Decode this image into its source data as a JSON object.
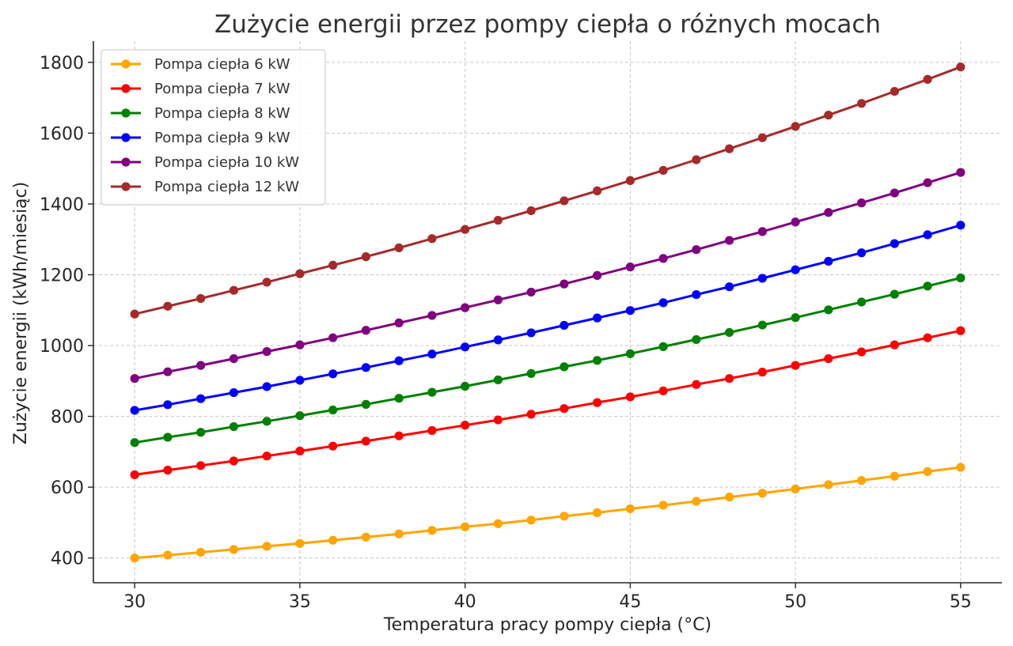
{
  "chart_data": {
    "type": "line",
    "title": "Zużycie energii przez pompy ciepła o różnych mocach",
    "xlabel": "Temperatura pracy pompy ciepła (°C)",
    "ylabel": "Zużycie energii (kWh/miesiąc)",
    "xlim": [
      28.75,
      56.25
    ],
    "ylim": [
      330,
      1860
    ],
    "xticks": [
      30,
      35,
      40,
      45,
      50,
      55
    ],
    "yticks": [
      400,
      600,
      800,
      1000,
      1200,
      1400,
      1600,
      1800
    ],
    "grid": true,
    "legend_position": "top-left",
    "x": [
      30,
      31,
      32,
      33,
      34,
      35,
      36,
      37,
      38,
      39,
      40,
      41,
      42,
      43,
      44,
      45,
      46,
      47,
      48,
      49,
      50,
      51,
      52,
      53,
      54,
      55
    ],
    "series": [
      {
        "name": "Pompa ciepła 6 kW",
        "color": "#ffa500",
        "values": [
          400,
          408,
          416,
          424,
          433,
          441,
          450,
          459,
          468,
          478,
          488,
          497,
          507,
          518,
          528,
          539,
          549,
          560,
          572,
          583,
          595,
          607,
          619,
          631,
          644,
          656
        ]
      },
      {
        "name": "Pompa ciepła 7 kW",
        "color": "#ff0000",
        "values": [
          635,
          648,
          661,
          674,
          688,
          702,
          716,
          730,
          745,
          760,
          775,
          790,
          806,
          822,
          839,
          855,
          872,
          890,
          907,
          925,
          944,
          963,
          982,
          1002,
          1022,
          1042
        ]
      },
      {
        "name": "Pompa ciepła 8 kW",
        "color": "#008000",
        "values": [
          726,
          741,
          755,
          771,
          786,
          802,
          818,
          834,
          851,
          868,
          885,
          903,
          921,
          940,
          958,
          977,
          997,
          1017,
          1037,
          1058,
          1079,
          1101,
          1123,
          1145,
          1168,
          1191
        ]
      },
      {
        "name": "Pompa ciepła 9 kW",
        "color": "#0000ff",
        "values": [
          817,
          833,
          850,
          867,
          884,
          902,
          920,
          938,
          957,
          976,
          996,
          1016,
          1036,
          1057,
          1078,
          1099,
          1121,
          1144,
          1166,
          1190,
          1214,
          1238,
          1262,
          1288,
          1313,
          1340
        ]
      },
      {
        "name": "Pompa ciepła 10 kW",
        "color": "#800080",
        "values": [
          907,
          926,
          944,
          963,
          983,
          1002,
          1022,
          1043,
          1064,
          1085,
          1107,
          1129,
          1151,
          1174,
          1198,
          1222,
          1246,
          1271,
          1297,
          1322,
          1349,
          1376,
          1403,
          1431,
          1460,
          1489
        ]
      },
      {
        "name": "Pompa ciepła 12 kW",
        "color": "#a52a2a",
        "values": [
          1089,
          1111,
          1133,
          1156,
          1179,
          1203,
          1227,
          1251,
          1276,
          1302,
          1328,
          1354,
          1381,
          1409,
          1437,
          1466,
          1495,
          1525,
          1556,
          1587,
          1619,
          1651,
          1684,
          1718,
          1752,
          1787
        ]
      }
    ]
  }
}
